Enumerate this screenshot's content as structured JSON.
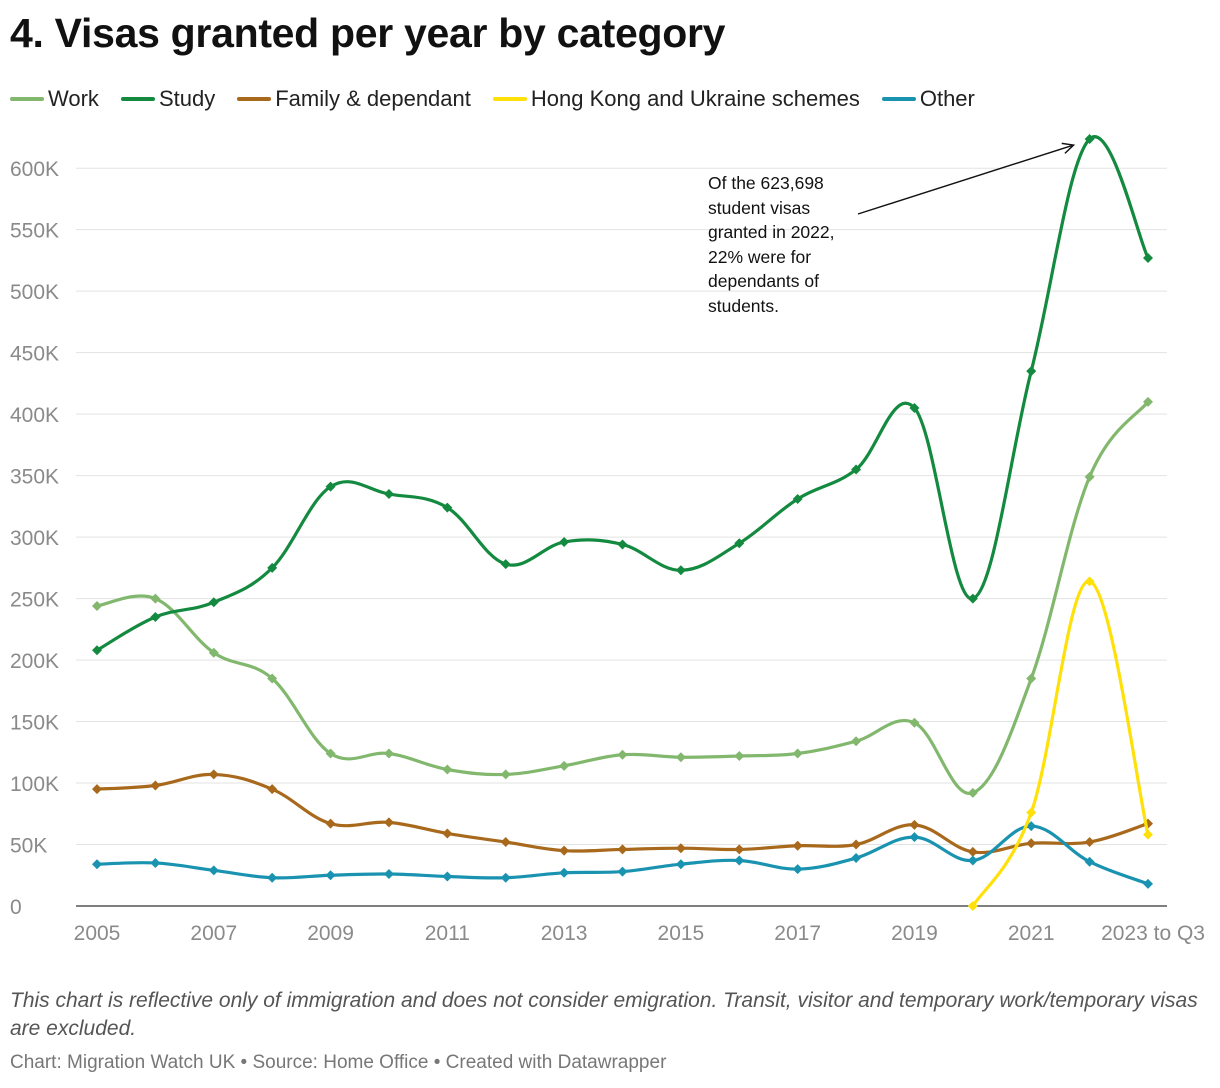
{
  "title": "4. Visas granted per year by category",
  "legend": [
    {
      "label": "Work",
      "color": "#82b86e"
    },
    {
      "label": "Study",
      "color": "#138a3f"
    },
    {
      "label": "Family & dependant",
      "color": "#a8691c"
    },
    {
      "label": "Hong Kong and Ukraine schemes",
      "color": "#ffe008"
    },
    {
      "label": "Other",
      "color": "#1a93b1"
    }
  ],
  "annotation": "Of the 623,698 student visas granted in 2022, 22% were for dependants of students.",
  "note": "This chart is reflective only of immigration and does not consider emigration. Transit, visitor and temporary work/temporary visas are excluded.",
  "credit": "Chart: Migration Watch UK • Source: Home Office • Created with Datawrapper",
  "chart_data": {
    "type": "line",
    "title": "4. Visas granted per year by category",
    "xlabel": "",
    "ylabel": "",
    "x": [
      2005,
      2006,
      2007,
      2008,
      2009,
      2010,
      2011,
      2012,
      2013,
      2014,
      2015,
      2016,
      2017,
      2018,
      2019,
      2020,
      2021,
      2022,
      2023
    ],
    "x_tick_labels": [
      "2005",
      "2007",
      "2009",
      "2011",
      "2013",
      "2015",
      "2017",
      "2019",
      "2021",
      "2023 to Q3"
    ],
    "x_tick_values": [
      2005,
      2007,
      2009,
      2011,
      2013,
      2015,
      2017,
      2019,
      2021,
      2023
    ],
    "ylim": [
      0,
      600000
    ],
    "y_ticks": [
      0,
      50000,
      100000,
      150000,
      200000,
      250000,
      300000,
      350000,
      400000,
      450000,
      500000,
      550000,
      600000
    ],
    "y_tick_labels": [
      "0",
      "50K",
      "100K",
      "150K",
      "200K",
      "250K",
      "300K",
      "350K",
      "400K",
      "450K",
      "500K",
      "550K",
      "600K"
    ],
    "grid": true,
    "legend_position": "top",
    "series": [
      {
        "name": "Work",
        "color": "#82b86e",
        "values": [
          244000,
          250000,
          206000,
          185000,
          124000,
          124000,
          111000,
          107000,
          114000,
          123000,
          121000,
          122000,
          124000,
          134000,
          149000,
          92000,
          185000,
          349000,
          410000
        ]
      },
      {
        "name": "Study",
        "color": "#138a3f",
        "values": [
          208000,
          235000,
          247000,
          275000,
          341000,
          335000,
          324000,
          278000,
          296000,
          294000,
          273000,
          295000,
          331000,
          355000,
          405000,
          250000,
          435000,
          623698,
          527000
        ]
      },
      {
        "name": "Family & dependant",
        "color": "#a8691c",
        "values": [
          95000,
          98000,
          107000,
          95000,
          67000,
          68000,
          59000,
          52000,
          45000,
          46000,
          47000,
          46000,
          49000,
          50000,
          66000,
          44000,
          51000,
          52000,
          67000
        ]
      },
      {
        "name": "Hong Kong and Ukraine schemes",
        "color": "#ffe008",
        "values": [
          null,
          null,
          null,
          null,
          null,
          null,
          null,
          null,
          null,
          null,
          null,
          null,
          null,
          null,
          null,
          0,
          76000,
          264000,
          58000
        ]
      },
      {
        "name": "Other",
        "color": "#1a93b1",
        "values": [
          34000,
          35000,
          29000,
          23000,
          25000,
          26000,
          24000,
          23000,
          27000,
          28000,
          34000,
          37000,
          30000,
          39000,
          56000,
          37000,
          65000,
          36000,
          18000
        ]
      }
    ],
    "annotations": [
      {
        "text": "Of the 623,698 student visas granted in 2022, 22% were for dependants of students.",
        "x": 2022,
        "y": 623698
      }
    ]
  }
}
